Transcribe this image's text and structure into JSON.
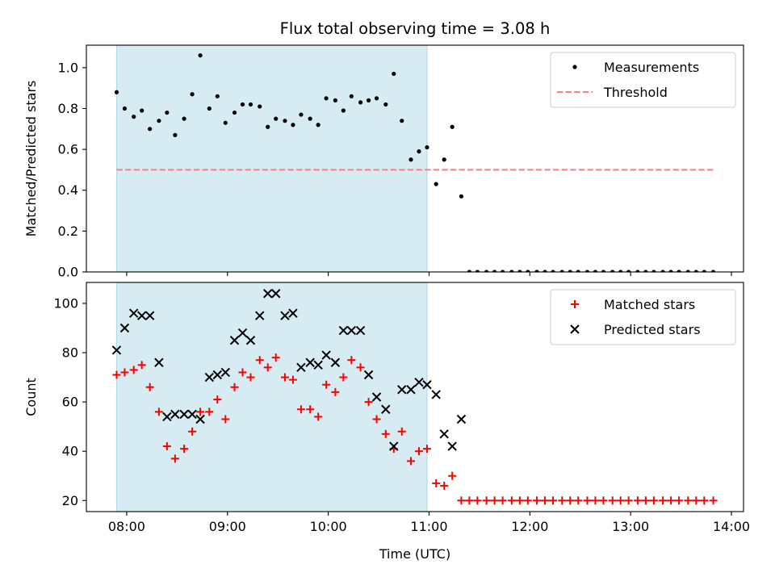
{
  "title": "Flux total observing time = 3.08 h",
  "x_axis": {
    "label": "Time (UTC)",
    "ticks": [
      "08:00",
      "09:00",
      "10:00",
      "11:00",
      "12:00",
      "13:00",
      "14:00"
    ],
    "tick_hours": [
      8,
      9,
      10,
      11,
      12,
      13,
      14
    ],
    "range_hours": [
      7.6,
      14.12
    ]
  },
  "colors": {
    "span": "#add8e6",
    "measurements": "#000000",
    "threshold": "#ff7f7f",
    "matched": "#ff0000",
    "predicted": "#000000"
  },
  "chart_data": [
    {
      "type": "scatter",
      "ylabel": "Matched/Predicted stars",
      "ylim": [
        0,
        1.11
      ],
      "yticks": [
        0.0,
        0.2,
        0.4,
        0.6,
        0.8,
        1.0
      ],
      "ytick_labels": [
        "0.0",
        "0.2",
        "0.4",
        "0.6",
        "0.8",
        "1.0"
      ],
      "legend": {
        "position": "top-right",
        "entries": [
          "Measurements",
          "Threshold"
        ]
      },
      "shaded_span": {
        "from": 7.9,
        "to": 10.98
      },
      "threshold": {
        "value": 0.5,
        "from": 7.9,
        "to": 13.83
      },
      "series": [
        {
          "name": "Measurements",
          "x": [
            7.9,
            7.98,
            8.07,
            8.15,
            8.23,
            8.32,
            8.4,
            8.48,
            8.57,
            8.65,
            8.73,
            8.82,
            8.9,
            8.98,
            9.07,
            9.15,
            9.23,
            9.32,
            9.4,
            9.48,
            9.57,
            9.65,
            9.73,
            9.82,
            9.9,
            9.98,
            10.07,
            10.15,
            10.23,
            10.32,
            10.4,
            10.48,
            10.57,
            10.65,
            10.73,
            10.82,
            10.9,
            10.98,
            11.07,
            11.15,
            11.23,
            11.32,
            11.4,
            11.48,
            11.57,
            11.65,
            11.73,
            11.82,
            11.9,
            11.98,
            12.07,
            12.15,
            12.23,
            12.32,
            12.4,
            12.48,
            12.57,
            12.65,
            12.73,
            12.82,
            12.9,
            12.98,
            13.07,
            13.15,
            13.23,
            13.32,
            13.4,
            13.48,
            13.57,
            13.65,
            13.73,
            13.82
          ],
          "y": [
            0.88,
            0.8,
            0.76,
            0.79,
            0.7,
            0.74,
            0.78,
            0.67,
            0.75,
            0.87,
            1.06,
            0.8,
            0.86,
            0.73,
            0.78,
            0.82,
            0.82,
            0.81,
            0.71,
            0.75,
            0.74,
            0.72,
            0.77,
            0.75,
            0.72,
            0.85,
            0.84,
            0.79,
            0.86,
            0.83,
            0.84,
            0.85,
            0.82,
            0.97,
            0.74,
            0.55,
            0.59,
            0.61,
            0.43,
            0.55,
            0.71,
            0.37,
            0,
            0,
            0,
            0,
            0,
            0,
            0,
            0,
            0,
            0,
            0,
            0,
            0,
            0,
            0,
            0,
            0,
            0,
            0,
            0,
            0,
            0,
            0,
            0,
            0,
            0,
            0,
            0,
            0,
            0
          ]
        }
      ]
    },
    {
      "type": "scatter",
      "ylabel": "Count",
      "ylim": [
        15.5,
        108.5
      ],
      "yticks": [
        20,
        40,
        60,
        80,
        100
      ],
      "ytick_labels": [
        "20",
        "40",
        "60",
        "80",
        "100"
      ],
      "legend": {
        "position": "top-right",
        "entries": [
          "Matched stars",
          "Predicted stars"
        ]
      },
      "shaded_span": {
        "from": 7.9,
        "to": 10.98
      },
      "series": [
        {
          "name": "Matched stars",
          "x": [
            7.9,
            7.98,
            8.07,
            8.15,
            8.23,
            8.32,
            8.4,
            8.48,
            8.57,
            8.65,
            8.73,
            8.82,
            8.9,
            8.98,
            9.07,
            9.15,
            9.23,
            9.32,
            9.4,
            9.48,
            9.57,
            9.65,
            9.73,
            9.82,
            9.9,
            9.98,
            10.07,
            10.15,
            10.23,
            10.32,
            10.4,
            10.48,
            10.57,
            10.65,
            10.73,
            10.82,
            10.9,
            10.98,
            11.07,
            11.15,
            11.23,
            11.32,
            11.4,
            11.48,
            11.57,
            11.65,
            11.73,
            11.82,
            11.9,
            11.98,
            12.07,
            12.15,
            12.23,
            12.32,
            12.4,
            12.48,
            12.57,
            12.65,
            12.73,
            12.82,
            12.9,
            12.98,
            13.07,
            13.15,
            13.23,
            13.32,
            13.4,
            13.48,
            13.57,
            13.65,
            13.73,
            13.82
          ],
          "y": [
            71,
            72,
            73,
            75,
            66,
            56,
            42,
            37,
            41,
            48,
            56,
            56,
            61,
            53,
            66,
            72,
            70,
            77,
            74,
            78,
            70,
            69,
            57,
            57,
            54,
            67,
            64,
            70,
            77,
            74,
            60,
            53,
            47,
            41,
            48,
            36,
            40,
            41,
            27,
            26,
            30,
            20,
            20,
            20,
            20,
            20,
            20,
            20,
            20,
            20,
            20,
            20,
            20,
            20,
            20,
            20,
            20,
            20,
            20,
            20,
            20,
            20,
            20,
            20,
            20,
            20,
            20,
            20,
            20,
            20,
            20,
            20
          ]
        },
        {
          "name": "Predicted stars",
          "x": [
            7.9,
            7.98,
            8.07,
            8.15,
            8.23,
            8.32,
            8.4,
            8.48,
            8.57,
            8.65,
            8.73,
            8.82,
            8.9,
            8.98,
            9.07,
            9.15,
            9.23,
            9.32,
            9.4,
            9.48,
            9.57,
            9.65,
            9.73,
            9.82,
            9.9,
            9.98,
            10.07,
            10.15,
            10.23,
            10.32,
            10.4,
            10.48,
            10.57,
            10.65,
            10.73,
            10.82,
            10.9,
            10.98,
            11.07,
            11.15,
            11.23,
            11.32
          ],
          "y": [
            81,
            90,
            96,
            95,
            95,
            76,
            54,
            55,
            55,
            55,
            53,
            70,
            71,
            72,
            85,
            88,
            85,
            95,
            104,
            104,
            95,
            96,
            74,
            76,
            75,
            79,
            76,
            89,
            89,
            89,
            71,
            62,
            57,
            42,
            65,
            65,
            68,
            67,
            63,
            47,
            42,
            53
          ]
        }
      ]
    }
  ]
}
